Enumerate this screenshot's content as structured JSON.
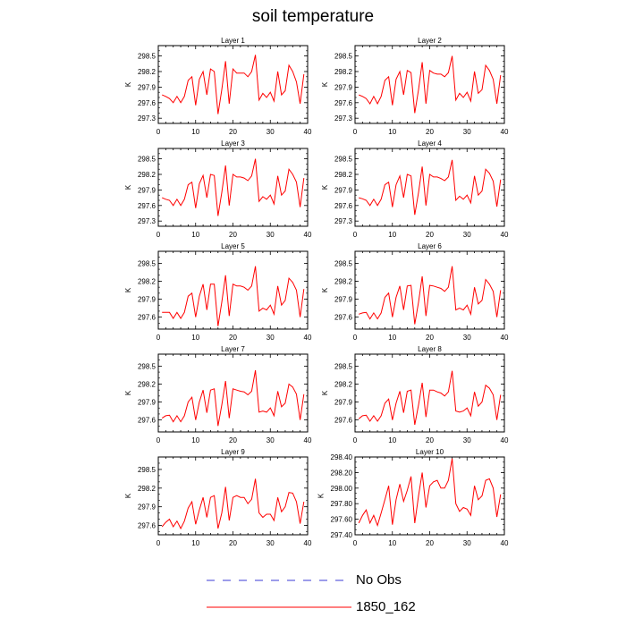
{
  "title": "soil temperature",
  "colors": {
    "obs": "#3b3bd6",
    "model": "#ff0000",
    "axis": "#000000"
  },
  "legend": [
    {
      "label": "No Obs",
      "style": "dashed",
      "color": "#3b3bd6"
    },
    {
      "label": "1850_162",
      "style": "solid",
      "color": "#ff0000"
    }
  ],
  "chart_data": [
    {
      "type": "line",
      "title": "Layer 1",
      "ylabel": "K",
      "xlim": [
        0,
        40
      ],
      "ylim": [
        297.2,
        298.7
      ],
      "xticks": [
        "0",
        "10",
        "20",
        "30",
        "40"
      ],
      "yticks": [
        "297.3",
        "297.6",
        "297.9",
        "298.2",
        "298.5"
      ],
      "series": [
        {
          "name": "1850_162",
          "x": [
            1,
            2,
            3,
            4,
            5,
            6,
            7,
            8,
            9,
            10,
            11,
            12,
            13,
            14,
            15,
            16,
            17,
            18,
            19,
            20,
            21,
            22,
            23,
            24,
            25,
            26,
            27,
            28,
            29,
            30,
            31,
            32,
            33,
            34,
            35,
            36,
            37,
            38,
            39
          ],
          "values": [
            297.75,
            297.72,
            297.68,
            297.6,
            297.72,
            297.6,
            297.72,
            298.03,
            298.1,
            297.55,
            298.05,
            298.2,
            297.75,
            298.25,
            298.2,
            297.38,
            297.85,
            298.4,
            297.58,
            298.25,
            298.17,
            298.17,
            298.17,
            298.1,
            298.2,
            298.52,
            297.65,
            297.78,
            297.7,
            297.8,
            297.63,
            298.2,
            297.75,
            297.83,
            298.32,
            298.2,
            298.0,
            297.58,
            298.15
          ]
        }
      ]
    },
    {
      "type": "line",
      "title": "Layer 2",
      "ylabel": "K",
      "xlim": [
        0,
        40
      ],
      "ylim": [
        297.2,
        298.7
      ],
      "xticks": [
        "0",
        "10",
        "20",
        "30",
        "40"
      ],
      "yticks": [
        "297.3",
        "297.6",
        "297.9",
        "298.2",
        "298.5"
      ],
      "series": [
        {
          "name": "1850_162",
          "x": [
            1,
            2,
            3,
            4,
            5,
            6,
            7,
            8,
            9,
            10,
            11,
            12,
            13,
            14,
            15,
            16,
            17,
            18,
            19,
            20,
            21,
            22,
            23,
            24,
            25,
            26,
            27,
            28,
            29,
            30,
            31,
            32,
            33,
            34,
            35,
            36,
            37,
            38,
            39
          ],
          "values": [
            297.75,
            297.72,
            297.68,
            297.58,
            297.72,
            297.58,
            297.72,
            298.03,
            298.1,
            297.55,
            298.05,
            298.2,
            297.75,
            298.22,
            298.18,
            297.4,
            297.85,
            298.38,
            297.58,
            298.22,
            298.17,
            298.15,
            298.15,
            298.1,
            298.18,
            298.5,
            297.65,
            297.78,
            297.7,
            297.8,
            297.63,
            298.2,
            297.78,
            297.85,
            298.32,
            298.22,
            298.05,
            297.58,
            298.13
          ]
        }
      ]
    },
    {
      "type": "line",
      "title": "Layer 3",
      "ylabel": "K",
      "xlim": [
        0,
        40
      ],
      "ylim": [
        297.2,
        298.7
      ],
      "xticks": [
        "0",
        "10",
        "20",
        "30",
        "40"
      ],
      "yticks": [
        "297.3",
        "297.6",
        "297.9",
        "298.2",
        "298.5"
      ],
      "series": [
        {
          "name": "1850_162",
          "x": [
            1,
            2,
            3,
            4,
            5,
            6,
            7,
            8,
            9,
            10,
            11,
            12,
            13,
            14,
            15,
            16,
            17,
            18,
            19,
            20,
            21,
            22,
            23,
            24,
            25,
            26,
            27,
            28,
            29,
            30,
            31,
            32,
            33,
            34,
            35,
            36,
            37,
            38,
            39
          ],
          "values": [
            297.75,
            297.72,
            297.7,
            297.6,
            297.72,
            297.6,
            297.72,
            298.0,
            298.05,
            297.55,
            298.02,
            298.18,
            297.75,
            298.2,
            298.18,
            297.4,
            297.85,
            298.37,
            297.6,
            298.2,
            298.15,
            298.15,
            298.13,
            298.08,
            298.17,
            298.5,
            297.68,
            297.77,
            297.72,
            297.8,
            297.63,
            298.17,
            297.8,
            297.88,
            298.3,
            298.2,
            298.05,
            297.57,
            298.13
          ]
        }
      ]
    },
    {
      "type": "line",
      "title": "Layer 4",
      "ylabel": "K",
      "xlim": [
        0,
        40
      ],
      "ylim": [
        297.2,
        298.7
      ],
      "xticks": [
        "0",
        "10",
        "20",
        "30",
        "40"
      ],
      "yticks": [
        "297.3",
        "297.6",
        "297.9",
        "298.2",
        "298.5"
      ],
      "series": [
        {
          "name": "1850_162",
          "x": [
            1,
            2,
            3,
            4,
            5,
            6,
            7,
            8,
            9,
            10,
            11,
            12,
            13,
            14,
            15,
            16,
            17,
            18,
            19,
            20,
            21,
            22,
            23,
            24,
            25,
            26,
            27,
            28,
            29,
            30,
            31,
            32,
            33,
            34,
            35,
            36,
            37,
            38,
            39
          ],
          "values": [
            297.75,
            297.73,
            297.7,
            297.6,
            297.72,
            297.6,
            297.72,
            298.0,
            298.05,
            297.57,
            298.0,
            298.17,
            297.75,
            298.2,
            298.17,
            297.42,
            297.85,
            298.35,
            297.6,
            298.2,
            298.15,
            298.15,
            298.12,
            298.08,
            298.15,
            298.48,
            297.7,
            297.78,
            297.72,
            297.8,
            297.65,
            298.17,
            297.8,
            297.88,
            298.3,
            298.22,
            298.07,
            297.58,
            298.1
          ]
        }
      ]
    },
    {
      "type": "line",
      "title": "Layer 5",
      "ylabel": "K",
      "xlim": [
        0,
        40
      ],
      "ylim": [
        297.4,
        298.7
      ],
      "xticks": [
        "0",
        "10",
        "20",
        "30",
        "40"
      ],
      "yticks": [
        "297.6",
        "297.9",
        "298.2",
        "298.5"
      ],
      "series": [
        {
          "name": "1850_162",
          "x": [
            1,
            2,
            3,
            4,
            5,
            6,
            7,
            8,
            9,
            10,
            11,
            12,
            13,
            14,
            15,
            16,
            17,
            18,
            19,
            20,
            21,
            22,
            23,
            24,
            25,
            26,
            27,
            28,
            29,
            30,
            31,
            32,
            33,
            34,
            35,
            36,
            37,
            38,
            39
          ],
          "values": [
            297.68,
            297.68,
            297.68,
            297.58,
            297.68,
            297.58,
            297.68,
            297.95,
            298.0,
            297.6,
            297.95,
            298.15,
            297.72,
            298.15,
            298.15,
            297.45,
            297.85,
            298.3,
            297.62,
            298.15,
            298.12,
            298.12,
            298.1,
            298.05,
            298.12,
            298.45,
            297.7,
            297.75,
            297.72,
            297.8,
            297.65,
            298.12,
            297.8,
            297.88,
            298.25,
            298.18,
            298.05,
            297.6,
            298.07
          ]
        }
      ]
    },
    {
      "type": "line",
      "title": "Layer 6",
      "ylabel": "K",
      "xlim": [
        0,
        40
      ],
      "ylim": [
        297.4,
        298.7
      ],
      "xticks": [
        "0",
        "10",
        "20",
        "30",
        "40"
      ],
      "yticks": [
        "297.6",
        "297.9",
        "298.2",
        "298.5"
      ],
      "series": [
        {
          "name": "1850_162",
          "x": [
            1,
            2,
            3,
            4,
            5,
            6,
            7,
            8,
            9,
            10,
            11,
            12,
            13,
            14,
            15,
            16,
            17,
            18,
            19,
            20,
            21,
            22,
            23,
            24,
            25,
            26,
            27,
            28,
            29,
            30,
            31,
            32,
            33,
            34,
            35,
            36,
            37,
            38,
            39
          ],
          "values": [
            297.65,
            297.67,
            297.68,
            297.57,
            297.67,
            297.57,
            297.67,
            297.93,
            298.0,
            297.6,
            297.93,
            298.12,
            297.72,
            298.12,
            298.13,
            297.48,
            297.85,
            298.28,
            297.62,
            298.13,
            298.12,
            298.1,
            298.08,
            298.03,
            298.1,
            298.45,
            297.72,
            297.75,
            297.72,
            297.8,
            297.65,
            298.1,
            297.82,
            297.88,
            298.23,
            298.15,
            298.03,
            297.6,
            298.05
          ]
        }
      ]
    },
    {
      "type": "line",
      "title": "Layer 7",
      "ylabel": "K",
      "xlim": [
        0,
        40
      ],
      "ylim": [
        297.4,
        298.7
      ],
      "xticks": [
        "0",
        "10",
        "20",
        "30",
        "40"
      ],
      "yticks": [
        "297.6",
        "297.9",
        "298.2",
        "298.5"
      ],
      "series": [
        {
          "name": "1850_162",
          "x": [
            1,
            2,
            3,
            4,
            5,
            6,
            7,
            8,
            9,
            10,
            11,
            12,
            13,
            14,
            15,
            16,
            17,
            18,
            19,
            20,
            21,
            22,
            23,
            24,
            25,
            26,
            27,
            28,
            29,
            30,
            31,
            32,
            33,
            34,
            35,
            36,
            37,
            38,
            39
          ],
          "values": [
            297.63,
            297.67,
            297.68,
            297.57,
            297.67,
            297.57,
            297.67,
            297.9,
            297.98,
            297.6,
            297.9,
            298.1,
            297.72,
            298.1,
            298.12,
            297.5,
            297.85,
            298.25,
            297.63,
            298.12,
            298.1,
            298.08,
            298.07,
            298.02,
            298.08,
            298.43,
            297.73,
            297.75,
            297.73,
            297.8,
            297.67,
            298.08,
            297.82,
            297.88,
            298.2,
            298.15,
            298.03,
            297.6,
            298.03
          ]
        }
      ]
    },
    {
      "type": "line",
      "title": "Layer 8",
      "ylabel": "K",
      "xlim": [
        0,
        40
      ],
      "ylim": [
        297.4,
        298.7
      ],
      "xticks": [
        "0",
        "10",
        "20",
        "30",
        "40"
      ],
      "yticks": [
        "297.6",
        "297.9",
        "298.2",
        "298.5"
      ],
      "series": [
        {
          "name": "1850_162",
          "x": [
            1,
            2,
            3,
            4,
            5,
            6,
            7,
            8,
            9,
            10,
            11,
            12,
            13,
            14,
            15,
            16,
            17,
            18,
            19,
            20,
            21,
            22,
            23,
            24,
            25,
            26,
            27,
            28,
            29,
            30,
            31,
            32,
            33,
            34,
            35,
            36,
            37,
            38,
            39
          ],
          "values": [
            297.62,
            297.67,
            297.68,
            297.58,
            297.67,
            297.58,
            297.67,
            297.88,
            297.95,
            297.6,
            297.88,
            298.08,
            297.72,
            298.08,
            298.1,
            297.52,
            297.85,
            298.22,
            297.65,
            298.1,
            298.1,
            298.07,
            298.05,
            298.0,
            298.07,
            298.42,
            297.75,
            297.73,
            297.75,
            297.8,
            297.67,
            298.07,
            297.83,
            297.9,
            298.18,
            298.13,
            298.02,
            297.6,
            298.02
          ]
        }
      ]
    },
    {
      "type": "line",
      "title": "Layer 9",
      "ylabel": "K",
      "xlim": [
        0,
        40
      ],
      "ylim": [
        297.45,
        298.7
      ],
      "xticks": [
        "0",
        "10",
        "20",
        "30",
        "40"
      ],
      "yticks": [
        "297.6",
        "297.9",
        "298.2",
        "298.5"
      ],
      "series": [
        {
          "name": "1850_162",
          "x": [
            1,
            2,
            3,
            4,
            5,
            6,
            7,
            8,
            9,
            10,
            11,
            12,
            13,
            14,
            15,
            16,
            17,
            18,
            19,
            20,
            21,
            22,
            23,
            24,
            25,
            26,
            27,
            28,
            29,
            30,
            31,
            32,
            33,
            34,
            35,
            36,
            37,
            38,
            39
          ],
          "values": [
            297.58,
            297.65,
            297.7,
            297.58,
            297.67,
            297.55,
            297.67,
            297.88,
            297.98,
            297.62,
            297.85,
            298.05,
            297.73,
            298.05,
            298.08,
            297.55,
            297.8,
            298.22,
            297.68,
            298.05,
            298.08,
            298.05,
            298.05,
            297.95,
            298.02,
            298.35,
            297.8,
            297.73,
            297.78,
            297.78,
            297.68,
            298.05,
            297.82,
            297.9,
            298.13,
            298.12,
            297.98,
            297.63,
            297.98
          ]
        }
      ]
    },
    {
      "type": "line",
      "title": "Layer 10",
      "ylabel": "K",
      "xlim": [
        0,
        40
      ],
      "ylim": [
        297.4,
        298.4
      ],
      "xticks": [
        "0",
        "10",
        "20",
        "30",
        "40"
      ],
      "yticks": [
        "297.40",
        "297.60",
        "297.80",
        "298.00",
        "298.20",
        "298.40"
      ],
      "series": [
        {
          "name": "1850_162",
          "x": [
            1,
            2,
            3,
            4,
            5,
            6,
            7,
            8,
            9,
            10,
            11,
            12,
            13,
            14,
            15,
            16,
            17,
            18,
            19,
            20,
            21,
            22,
            23,
            24,
            25,
            26,
            27,
            28,
            29,
            30,
            31,
            32,
            33,
            34,
            35,
            36,
            37,
            38,
            39
          ],
          "values": [
            297.55,
            297.65,
            297.72,
            297.55,
            297.65,
            297.52,
            297.68,
            297.85,
            298.03,
            297.53,
            297.85,
            298.05,
            297.83,
            297.97,
            298.15,
            297.55,
            297.9,
            298.2,
            297.75,
            298.03,
            298.08,
            298.1,
            298.0,
            298.0,
            298.1,
            298.38,
            297.8,
            297.7,
            297.75,
            297.73,
            297.65,
            298.03,
            297.85,
            297.9,
            298.1,
            298.12,
            298.0,
            297.63,
            297.92
          ]
        }
      ]
    }
  ]
}
